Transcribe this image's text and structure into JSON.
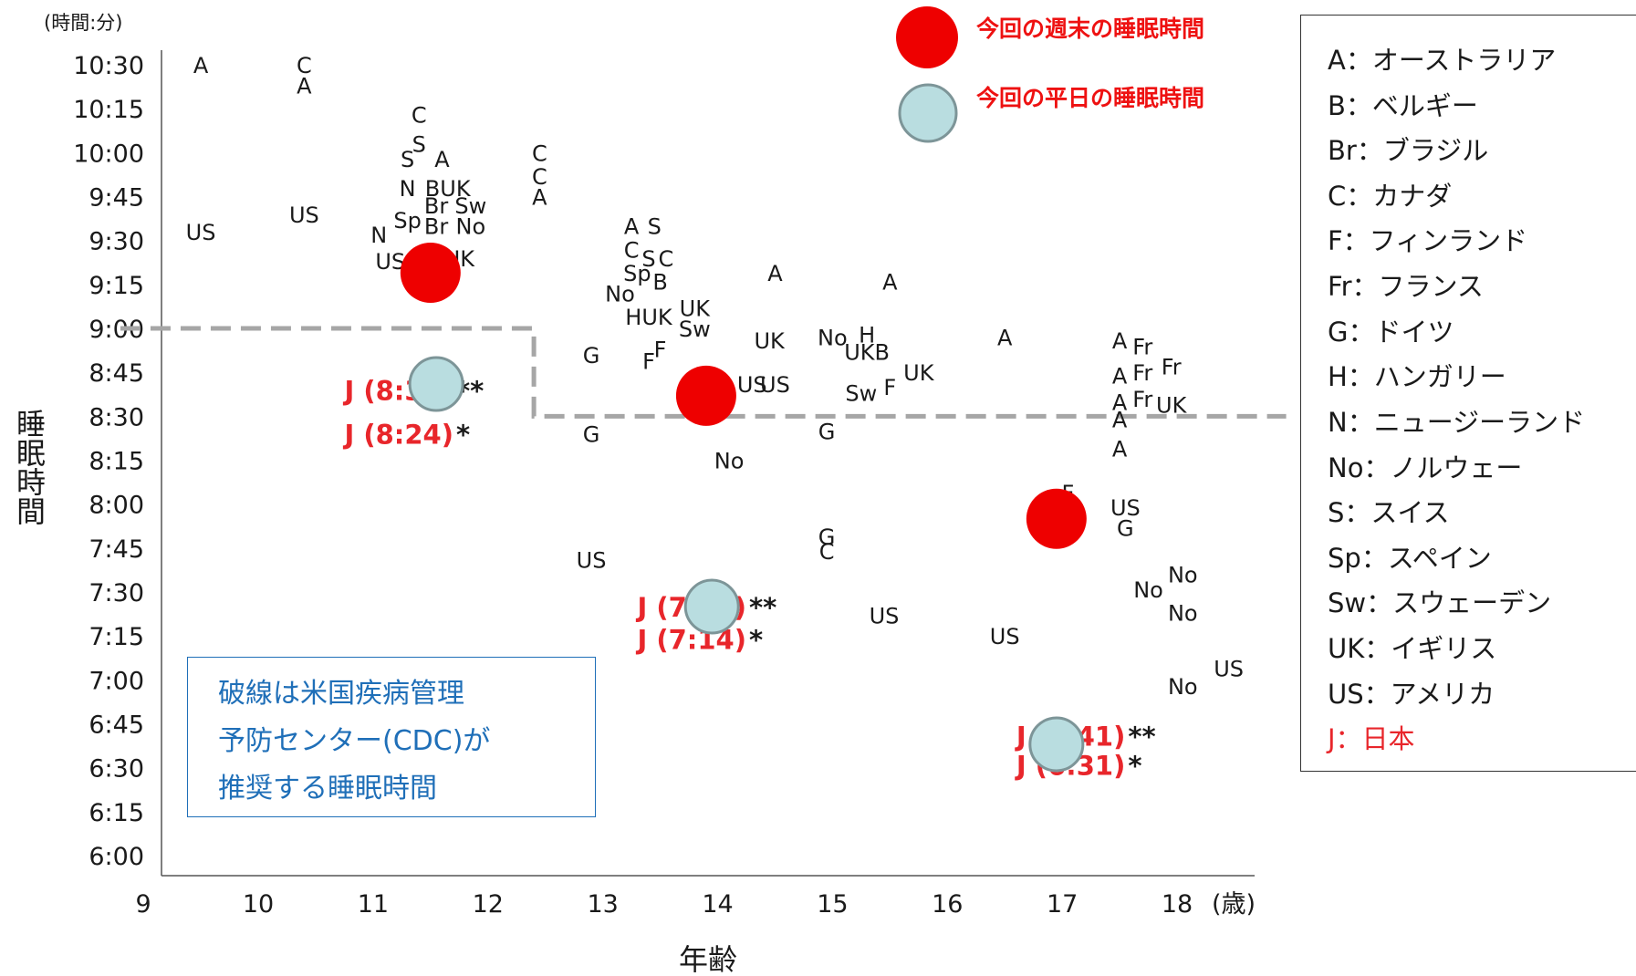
{
  "chart_data": {
    "type": "scatter",
    "xlabel": "年齢",
    "ylabel": "睡眠時間",
    "x_unit": "(歳)",
    "y_unit": "(時間:分)",
    "xlim": [
      8.8,
      18.95
    ],
    "ylim": [
      "6:00",
      "10:30"
    ],
    "x_ticks": [
      "9",
      "10",
      "11",
      "12",
      "13",
      "14",
      "15",
      "16",
      "17",
      "18"
    ],
    "y_ticks": [
      "6:00",
      "6:15",
      "6:30",
      "6:45",
      "7:00",
      "7:15",
      "7:30",
      "7:45",
      "8:00",
      "8:15",
      "8:30",
      "8:45",
      "9:00",
      "9:15",
      "9:30",
      "9:45",
      "10:00",
      "10:15",
      "10:30"
    ],
    "country_points": [
      {
        "label": "A",
        "x": 9.5,
        "y": "10:30"
      },
      {
        "label": "C",
        "x": 10.4,
        "y": "10:30"
      },
      {
        "label": "A",
        "x": 10.4,
        "y": "10:23"
      },
      {
        "label": "US",
        "x": 9.5,
        "y": "9:33"
      },
      {
        "label": "US",
        "x": 10.4,
        "y": "9:39"
      },
      {
        "label": "C",
        "x": 11.4,
        "y": "10:13"
      },
      {
        "label": "S",
        "x": 11.4,
        "y": "10:03"
      },
      {
        "label": "S",
        "x": 11.3,
        "y": "9:58"
      },
      {
        "label": "A",
        "x": 11.6,
        "y": "9:58"
      },
      {
        "label": "N",
        "x": 11.3,
        "y": "9:48"
      },
      {
        "label": "BUK",
        "x": 11.65,
        "y": "9:48"
      },
      {
        "label": "Br",
        "x": 11.55,
        "y": "9:42"
      },
      {
        "label": "Sw",
        "x": 11.85,
        "y": "9:42"
      },
      {
        "label": "Sp",
        "x": 11.3,
        "y": "9:37"
      },
      {
        "label": "Br",
        "x": 11.55,
        "y": "9:35"
      },
      {
        "label": "No",
        "x": 11.85,
        "y": "9:35"
      },
      {
        "label": "N",
        "x": 11.05,
        "y": "9:32"
      },
      {
        "label": "US",
        "x": 11.15,
        "y": "9:23"
      },
      {
        "label": "UK",
        "x": 11.75,
        "y": "9:24"
      },
      {
        "label": "C",
        "x": 12.45,
        "y": "10:00"
      },
      {
        "label": "C",
        "x": 12.45,
        "y": "9:52"
      },
      {
        "label": "A",
        "x": 12.45,
        "y": "9:45"
      },
      {
        "label": "A",
        "x": 13.25,
        "y": "9:35"
      },
      {
        "label": "S",
        "x": 13.45,
        "y": "9:35"
      },
      {
        "label": "C",
        "x": 13.25,
        "y": "9:27"
      },
      {
        "label": "S",
        "x": 13.4,
        "y": "9:24"
      },
      {
        "label": "C",
        "x": 13.55,
        "y": "9:24"
      },
      {
        "label": "Sp",
        "x": 13.3,
        "y": "9:19"
      },
      {
        "label": "B",
        "x": 13.5,
        "y": "9:16"
      },
      {
        "label": "No",
        "x": 13.15,
        "y": "9:12"
      },
      {
        "label": "UK",
        "x": 13.8,
        "y": "9:07"
      },
      {
        "label": "HUK",
        "x": 13.4,
        "y": "9:04"
      },
      {
        "label": "Sw",
        "x": 13.8,
        "y": "9:00"
      },
      {
        "label": "A",
        "x": 14.5,
        "y": "9:19"
      },
      {
        "label": "UK",
        "x": 14.45,
        "y": "8:56"
      },
      {
        "label": "G",
        "x": 12.9,
        "y": "8:51"
      },
      {
        "label": "F",
        "x": 13.5,
        "y": "8:53"
      },
      {
        "label": "F",
        "x": 13.4,
        "y": "8:49"
      },
      {
        "label": "US",
        "x": 14.3,
        "y": "8:41"
      },
      {
        "label": "US",
        "x": 14.5,
        "y": "8:41"
      },
      {
        "label": "G",
        "x": 12.9,
        "y": "8:24"
      },
      {
        "label": "No",
        "x": 14.1,
        "y": "8:15"
      },
      {
        "label": "No",
        "x": 15.0,
        "y": "8:57"
      },
      {
        "label": "H",
        "x": 15.3,
        "y": "8:58"
      },
      {
        "label": "UKB",
        "x": 15.3,
        "y": "8:52"
      },
      {
        "label": "UK",
        "x": 15.75,
        "y": "8:45"
      },
      {
        "label": "Sw",
        "x": 15.25,
        "y": "8:38"
      },
      {
        "label": "F",
        "x": 15.5,
        "y": "8:40"
      },
      {
        "label": "A",
        "x": 15.5,
        "y": "9:16"
      },
      {
        "label": "G",
        "x": 14.95,
        "y": "8:25"
      },
      {
        "label": "G",
        "x": 14.95,
        "y": "7:49"
      },
      {
        "label": "C",
        "x": 14.95,
        "y": "7:44"
      },
      {
        "label": "US",
        "x": 12.9,
        "y": "7:41"
      },
      {
        "label": "US",
        "x": 15.45,
        "y": "7:22"
      },
      {
        "label": "US",
        "x": 16.5,
        "y": "7:15"
      },
      {
        "label": "A",
        "x": 16.5,
        "y": "8:57"
      },
      {
        "label": "A",
        "x": 17.5,
        "y": "8:56"
      },
      {
        "label": "Fr",
        "x": 17.7,
        "y": "8:54"
      },
      {
        "label": "A",
        "x": 17.5,
        "y": "8:44"
      },
      {
        "label": "Fr",
        "x": 17.7,
        "y": "8:45"
      },
      {
        "label": "Fr",
        "x": 17.95,
        "y": "8:47"
      },
      {
        "label": "A",
        "x": 17.5,
        "y": "8:35"
      },
      {
        "label": "Fr",
        "x": 17.7,
        "y": "8:36"
      },
      {
        "label": "UK",
        "x": 17.95,
        "y": "8:34"
      },
      {
        "label": "A",
        "x": 17.5,
        "y": "8:29"
      },
      {
        "label": "A",
        "x": 17.5,
        "y": "8:19"
      },
      {
        "label": "F",
        "x": 17.05,
        "y": "8:04"
      },
      {
        "label": "US",
        "x": 17.55,
        "y": "7:59"
      },
      {
        "label": "G",
        "x": 17.55,
        "y": "7:52"
      },
      {
        "label": "No",
        "x": 18.05,
        "y": "7:36"
      },
      {
        "label": "No",
        "x": 17.75,
        "y": "7:31"
      },
      {
        "label": "No",
        "x": 18.05,
        "y": "7:23"
      },
      {
        "label": "US",
        "x": 18.45,
        "y": "7:04"
      },
      {
        "label": "No",
        "x": 18.05,
        "y": "6:58"
      }
    ],
    "japan_points": [
      {
        "label": "J (8:39)",
        "mark": "**",
        "x": 11.7,
        "y": "8:39"
      },
      {
        "label": "J (8:24)",
        "mark": "*",
        "x": 11.7,
        "y": "8:24"
      },
      {
        "label": "J (7:25)",
        "mark": "**",
        "x": 14.25,
        "y": "7:25"
      },
      {
        "label": "J (7:14)",
        "mark": "*",
        "x": 14.25,
        "y": "7:14"
      },
      {
        "label": "J (6:41)",
        "mark": "**",
        "x": 17.55,
        "y": "6:41"
      },
      {
        "label": "J (6:31)",
        "mark": "*",
        "x": 17.55,
        "y": "6:31"
      }
    ],
    "series": [
      {
        "name": "今回の週末の睡眠時間",
        "color": "#ee0000",
        "points": [
          {
            "x": 11.5,
            "y": "9:19"
          },
          {
            "x": 13.9,
            "y": "8:37"
          },
          {
            "x": 16.95,
            "y": "7:55"
          }
        ]
      },
      {
        "name": "今回の平日の睡眠時間",
        "color": "#b9dde0",
        "points": [
          {
            "x": 11.55,
            "y": "8:41"
          },
          {
            "x": 13.95,
            "y": "7:25"
          },
          {
            "x": 16.95,
            "y": "6:38"
          }
        ]
      }
    ],
    "cdc_recommendation": {
      "segments": [
        {
          "x_from": 8.8,
          "x_to": 12.4,
          "y": "9:00"
        },
        {
          "x_from": 12.4,
          "x_to": 18.95,
          "y": "8:30"
        }
      ]
    },
    "grid": false,
    "legend_position": "right"
  },
  "legend": {
    "items": [
      {
        "text": "A：オーストラリア",
        "color": "#1a1a1a"
      },
      {
        "text": "B：ベルギー",
        "color": "#1a1a1a"
      },
      {
        "text": "Br：ブラジル",
        "color": "#1a1a1a"
      },
      {
        "text": "C：カナダ",
        "color": "#1a1a1a"
      },
      {
        "text": "F：フィンランド",
        "color": "#1a1a1a"
      },
      {
        "text": "Fr：フランス",
        "color": "#1a1a1a"
      },
      {
        "text": "G：ドイツ",
        "color": "#1a1a1a"
      },
      {
        "text": "H：ハンガリー",
        "color": "#1a1a1a"
      },
      {
        "text": "N：ニュージーランド",
        "color": "#1a1a1a"
      },
      {
        "text": "No：ノルウェー",
        "color": "#1a1a1a"
      },
      {
        "text": "S：スイス",
        "color": "#1a1a1a"
      },
      {
        "text": "Sp：スペイン",
        "color": "#1a1a1a"
      },
      {
        "text": "Sw：スウェーデン",
        "color": "#1a1a1a"
      },
      {
        "text": "UK：イギリス",
        "color": "#1a1a1a"
      },
      {
        "text": "US：アメリカ",
        "color": "#1a1a1a"
      },
      {
        "text": "J：日本",
        "color": "#e8262b"
      }
    ]
  },
  "note": {
    "lines": [
      "破線は米国疾病管理",
      "予防センター(CDC)が",
      "推奨する睡眠時間"
    ]
  },
  "colors": {
    "weekend": "#ee0000",
    "weekday_fill": "#b9dde0",
    "weekday_stroke": "#7d9598",
    "japan": "#e8262b",
    "cdc_line": "#a6a6a6",
    "note_blue": "#1f6fb8"
  }
}
